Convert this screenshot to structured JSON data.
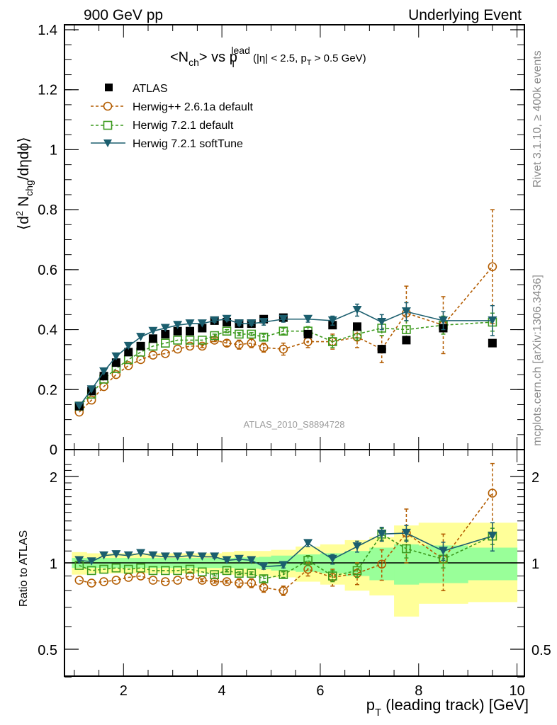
{
  "header": {
    "left": "900 GeV pp",
    "right": "Underlying Event"
  },
  "side_labels": {
    "rivet": "Rivet 3.1.10, ≥ 400k events",
    "mcplots": "mcplots.cern.ch [arXiv:1306.3436]"
  },
  "watermark": "ATLAS_2010_S8894728",
  "colors": {
    "atlas": "#000000",
    "herwigpp": "#b35c00",
    "herwig721": "#3c9a1e",
    "softtune": "#1b5e6e",
    "band_inner": "#99ff99",
    "band_outer": "#ffff99"
  },
  "chart_data": [
    {
      "type": "scatter",
      "panel": "main",
      "title": "<Nch> vs pT^lead (|η| < 2.5, pT > 0.5 GeV)",
      "title_parts": {
        "a": "<N",
        "a_sub": "ch",
        "b": "> vs p",
        "b_sub": "T",
        "b_sup": "lead",
        "c": " (|η| < 2.5, p",
        "c_sub": "T",
        "d": " > 0.5 GeV)"
      },
      "xlabel": "p_T (leading track) [GeV]",
      "ylabel": "⟨d² N_chg/dηdϕ⟩",
      "xlim": [
        0.8,
        10.15
      ],
      "ylim": [
        0,
        1.4
      ],
      "yticks": [
        0,
        0.2,
        0.4,
        0.6,
        0.8,
        1,
        1.2,
        1.4
      ],
      "ytick_labels": [
        "0",
        "0.2",
        "0.4",
        "0.6",
        "0.8",
        "1",
        "1.2",
        "1.4"
      ],
      "legend": [
        "ATLAS",
        "Herwig++ 2.6.1a default",
        "Herwig 7.2.1 default",
        "Herwig 7.2.1 softTune"
      ],
      "legend_position": "top-left",
      "x": [
        1.1,
        1.35,
        1.6,
        1.85,
        2.1,
        2.35,
        2.6,
        2.85,
        3.1,
        3.35,
        3.6,
        3.85,
        4.1,
        4.35,
        4.6,
        4.85,
        5.25,
        5.75,
        6.25,
        6.75,
        7.25,
        7.75,
        8.5,
        9.5
      ],
      "series": [
        {
          "name": "ATLAS",
          "marker": "square-filled",
          "values": [
            0.145,
            0.195,
            0.245,
            0.29,
            0.325,
            0.345,
            0.37,
            0.385,
            0.395,
            0.395,
            0.405,
            0.43,
            0.425,
            0.42,
            0.42,
            0.435,
            0.44,
            0.385,
            0.415,
            0.41,
            0.335,
            0.365,
            0.405,
            0.355
          ]
        },
        {
          "name": "Herwig++ 2.6.1a default",
          "marker": "circle-open",
          "line": "dashed",
          "values": [
            0.125,
            0.165,
            0.21,
            0.25,
            0.28,
            0.3,
            0.315,
            0.32,
            0.335,
            0.345,
            0.345,
            0.365,
            0.355,
            0.35,
            0.355,
            0.34,
            0.335,
            0.36,
            0.36,
            0.375,
            0.335,
            0.455,
            0.415,
            0.61
          ],
          "errors": [
            0,
            0,
            0,
            0,
            0,
            0,
            0,
            0,
            0,
            0,
            0.005,
            0.005,
            0.01,
            0.015,
            0.015,
            0.015,
            0.02,
            0.02,
            0.025,
            0.035,
            0.045,
            0.09,
            0.095,
            0.19
          ]
        },
        {
          "name": "Herwig 7.2.1 default",
          "marker": "square-open",
          "line": "dashed",
          "values": [
            0.145,
            0.185,
            0.235,
            0.27,
            0.3,
            0.325,
            0.345,
            0.355,
            0.365,
            0.365,
            0.365,
            0.38,
            0.395,
            0.385,
            0.385,
            0.375,
            0.395,
            0.395,
            0.36,
            0.385,
            0.405,
            0.4,
            0.415,
            0.425
          ],
          "errors": [
            0,
            0,
            0,
            0,
            0,
            0,
            0,
            0,
            0,
            0,
            0,
            0.005,
            0.005,
            0.005,
            0.005,
            0.01,
            0.01,
            0.015,
            0.02,
            0.02,
            0.025,
            0.03,
            0.03,
            0.03
          ]
        },
        {
          "name": "Herwig 7.2.1 softTune",
          "marker": "triangle-down-filled",
          "line": "solid",
          "values": [
            0.145,
            0.2,
            0.26,
            0.31,
            0.345,
            0.375,
            0.395,
            0.405,
            0.415,
            0.42,
            0.42,
            0.43,
            0.435,
            0.42,
            0.42,
            0.425,
            0.435,
            0.435,
            0.43,
            0.465,
            0.425,
            0.46,
            0.43,
            0.43
          ],
          "errors": [
            0,
            0,
            0,
            0,
            0,
            0,
            0,
            0,
            0,
            0,
            0,
            0.005,
            0.005,
            0.005,
            0.005,
            0.01,
            0.01,
            0.01,
            0.015,
            0.02,
            0.025,
            0.03,
            0.03,
            0.05
          ]
        }
      ]
    },
    {
      "type": "scatter",
      "panel": "ratio",
      "ylabel": "Ratio to ATLAS",
      "xlabel": "p_T (leading track) [GeV]",
      "xlim": [
        0.8,
        10.15
      ],
      "ylim": [
        0.39,
        2.3
      ],
      "yscale": "log",
      "yticks": [
        0.5,
        1,
        2
      ],
      "ytick_labels": [
        "0.5",
        "1",
        "2"
      ],
      "xticks": [
        2,
        4,
        6,
        8,
        10
      ],
      "xtick_labels": [
        "2",
        "4",
        "6",
        "8",
        "10"
      ],
      "reference_line": 1,
      "x": [
        1.1,
        1.35,
        1.6,
        1.85,
        2.1,
        2.35,
        2.6,
        2.85,
        3.1,
        3.35,
        3.6,
        3.85,
        4.1,
        4.35,
        4.6,
        4.85,
        5.25,
        5.75,
        6.25,
        6.75,
        7.25,
        7.75,
        8.5,
        9.5
      ],
      "bin_edges": [
        0.95,
        1.25,
        1.5,
        1.75,
        2.0,
        2.25,
        2.5,
        2.75,
        3.0,
        3.25,
        3.5,
        3.75,
        4.0,
        4.25,
        4.5,
        4.75,
        5.0,
        5.5,
        6.0,
        6.5,
        7.0,
        7.5,
        8.0,
        9.0,
        10.0
      ],
      "bands": {
        "inner_low": [
          0.96,
          0.96,
          0.96,
          0.96,
          0.96,
          0.96,
          0.96,
          0.96,
          0.96,
          0.96,
          0.96,
          0.96,
          0.96,
          0.955,
          0.955,
          0.95,
          0.94,
          0.93,
          0.92,
          0.9,
          0.87,
          0.84,
          0.85,
          0.87
        ],
        "inner_high": [
          1.04,
          1.04,
          1.04,
          1.04,
          1.04,
          1.04,
          1.04,
          1.04,
          1.04,
          1.04,
          1.04,
          1.04,
          1.04,
          1.045,
          1.045,
          1.05,
          1.06,
          1.07,
          1.08,
          1.1,
          1.13,
          1.16,
          1.15,
          1.13
        ],
        "outer_low": [
          0.91,
          0.92,
          0.92,
          0.92,
          0.92,
          0.92,
          0.92,
          0.92,
          0.92,
          0.92,
          0.92,
          0.92,
          0.91,
          0.9,
          0.9,
          0.9,
          0.89,
          0.86,
          0.84,
          0.8,
          0.77,
          0.65,
          0.72,
          0.73
        ],
        "outer_high": [
          1.09,
          1.08,
          1.08,
          1.08,
          1.08,
          1.08,
          1.08,
          1.08,
          1.08,
          1.08,
          1.08,
          1.08,
          1.09,
          1.1,
          1.1,
          1.1,
          1.11,
          1.14,
          1.16,
          1.2,
          1.23,
          1.35,
          1.38,
          1.38
        ]
      },
      "series": [
        {
          "name": "Herwig++ 2.6.1a default",
          "values": [
            0.87,
            0.85,
            0.86,
            0.87,
            0.89,
            0.9,
            0.87,
            0.86,
            0.87,
            0.9,
            0.87,
            0.86,
            0.86,
            0.85,
            0.85,
            0.82,
            0.8,
            0.95,
            0.89,
            0.92,
            0.99,
            1.27,
            1.03,
            1.75
          ],
          "errors": [
            0,
            0,
            0,
            0,
            0,
            0,
            0,
            0,
            0,
            0,
            0.01,
            0.01,
            0.01,
            0.03,
            0.03,
            0.03,
            0.03,
            0.05,
            0.06,
            0.08,
            0.12,
            0.27,
            0.23,
            0.47
          ]
        },
        {
          "name": "Herwig 7.2.1 default",
          "values": [
            0.98,
            0.94,
            0.95,
            0.96,
            0.95,
            0.96,
            0.94,
            0.94,
            0.94,
            0.95,
            0.93,
            0.91,
            0.94,
            0.92,
            0.92,
            0.88,
            0.91,
            1.02,
            0.9,
            0.94,
            1.26,
            1.12,
            1.03,
            1.24
          ],
          "errors": [
            0,
            0,
            0,
            0,
            0,
            0,
            0,
            0,
            0,
            0,
            0,
            0.01,
            0.01,
            0.01,
            0.01,
            0.02,
            0.02,
            0.04,
            0.04,
            0.05,
            0.06,
            0.08,
            0.07,
            0.08
          ]
        },
        {
          "name": "Herwig 7.2.1 softTune",
          "values": [
            1.02,
            1.01,
            1.06,
            1.07,
            1.06,
            1.08,
            1.06,
            1.05,
            1.05,
            1.06,
            1.05,
            1.05,
            1.02,
            1.03,
            1.02,
            0.97,
            0.98,
            1.17,
            1.03,
            1.14,
            1.26,
            1.27,
            1.1,
            1.24
          ],
          "errors": [
            0,
            0,
            0,
            0,
            0,
            0,
            0,
            0,
            0,
            0,
            0,
            0.01,
            0.01,
            0.01,
            0.01,
            0.02,
            0.02,
            0.03,
            0.04,
            0.05,
            0.07,
            0.08,
            0.08,
            0.14
          ]
        }
      ]
    }
  ]
}
